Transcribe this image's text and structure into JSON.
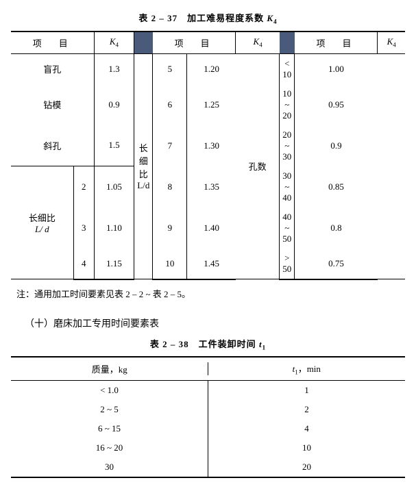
{
  "table1": {
    "title_pre": "表 2 – 37　加工难易程度系数 ",
    "k4": "K",
    "k4sub": "4",
    "header_item": "项　目",
    "header_k": "K",
    "col1": {
      "blind_hole": "盲孔",
      "drill_jig": "钻模",
      "oblique": "斜孔",
      "slender_label_l1": "长细比",
      "slender_label_l2": "L/ d",
      "slender_vals": [
        "2",
        "3",
        "4"
      ],
      "k4_vals": [
        "1.3",
        "0.9",
        "1.5",
        "1.05",
        "1.10",
        "1.15"
      ]
    },
    "col2": {
      "slender_label_l1": "长细比",
      "slender_label_l2": "L/d",
      "item_vals": [
        "5",
        "6",
        "7",
        "8",
        "9",
        "10"
      ],
      "k4_vals": [
        "1.20",
        "1.25",
        "1.30",
        "1.35",
        "1.40",
        "1.45"
      ]
    },
    "col3": {
      "hole_count": "孔数",
      "item_vals": [
        "< 10",
        "10 ~ 20",
        "20 ~ 30",
        "30 ~ 40",
        "40 ~ 50",
        "> 50"
      ],
      "k4_vals": [
        "1.00",
        "0.95",
        "0.9",
        "0.85",
        "0.8",
        "0.75"
      ]
    },
    "note": "注：通用加工时间要素见表 2 – 2 ~ 表 2 – 5。"
  },
  "section_title": "（十）磨床加工专用时间要素表",
  "table2": {
    "title_pre": "表 2 – 38　工件装卸时间 ",
    "t1_sym": "t",
    "t1_sub": "1",
    "header_mass": "质量，kg",
    "header_t": "，min",
    "rows": [
      {
        "m": "< 1.0",
        "t": "1"
      },
      {
        "m": "2 ~ 5",
        "t": "2"
      },
      {
        "m": "6 ~ 15",
        "t": "4"
      },
      {
        "m": "16 ~ 20",
        "t": "10"
      },
      {
        "m": "30",
        "t": "20"
      }
    ]
  }
}
